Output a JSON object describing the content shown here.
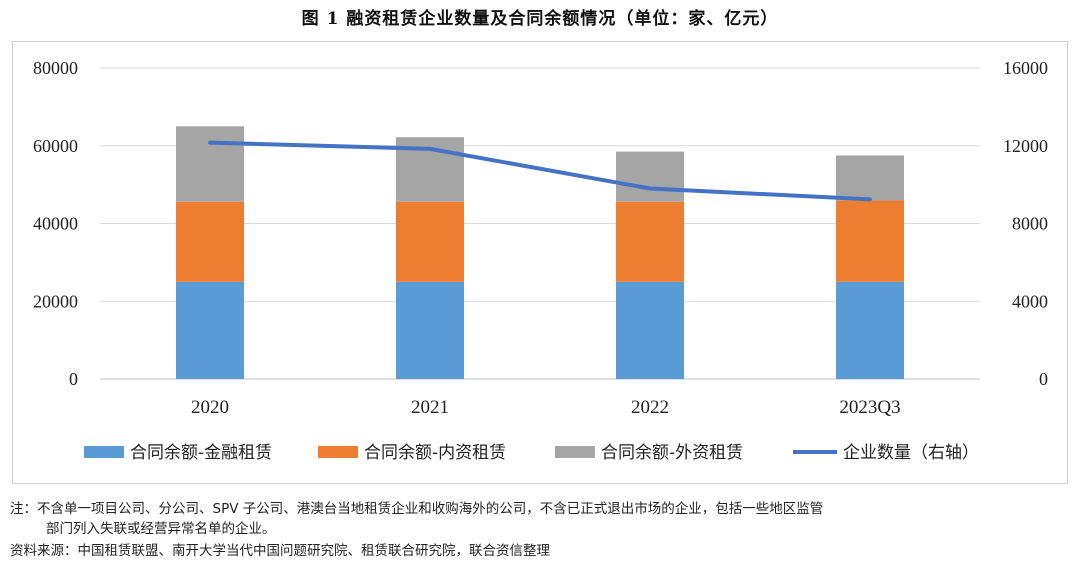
{
  "title": "图 1 融资租赁企业数量及合同余额情况（单位：家、亿元）",
  "chart_data": {
    "type": "bar",
    "stacked": true,
    "categories": [
      "2020",
      "2021",
      "2022",
      "2023Q3"
    ],
    "series": [
      {
        "name": "合同余额-金融租赁",
        "axis": "left",
        "color": "#5b9bd5",
        "values": [
          25000,
          25000,
          25000,
          25000
        ]
      },
      {
        "name": "合同余额-内资租赁",
        "axis": "left",
        "color": "#ed7d31",
        "values": [
          20600,
          20600,
          20600,
          20900
        ]
      },
      {
        "name": "合同余额-外资租赁",
        "axis": "left",
        "color": "#a5a5a5",
        "values": [
          19400,
          16600,
          12900,
          11600
        ]
      },
      {
        "name": "企业数量（右轴）",
        "axis": "right",
        "type": "line",
        "color": "#4472c4",
        "values": [
          12160,
          11840,
          9800,
          9240
        ]
      }
    ],
    "ylim_left": [
      0,
      80000
    ],
    "ylim_right": [
      0,
      16000
    ],
    "yticks_left": [
      "0",
      "20000",
      "40000",
      "60000",
      "80000"
    ],
    "yticks_right": [
      "0",
      "4000",
      "8000",
      "12000",
      "16000"
    ],
    "grid": true,
    "legend": "bottom"
  },
  "note_line1": "注：不含单一项目公司、分公司、SPV 子公司、港澳台当地租赁企业和收购海外的公司，不含已正式退出市场的企业，包括一些地区监管",
  "note_line2": "部门列入失联或经营异常名单的企业。",
  "source": "资料来源：中国租赁联盟、南开大学当代中国问题研究院、租赁联合研究院，联合资信整理"
}
